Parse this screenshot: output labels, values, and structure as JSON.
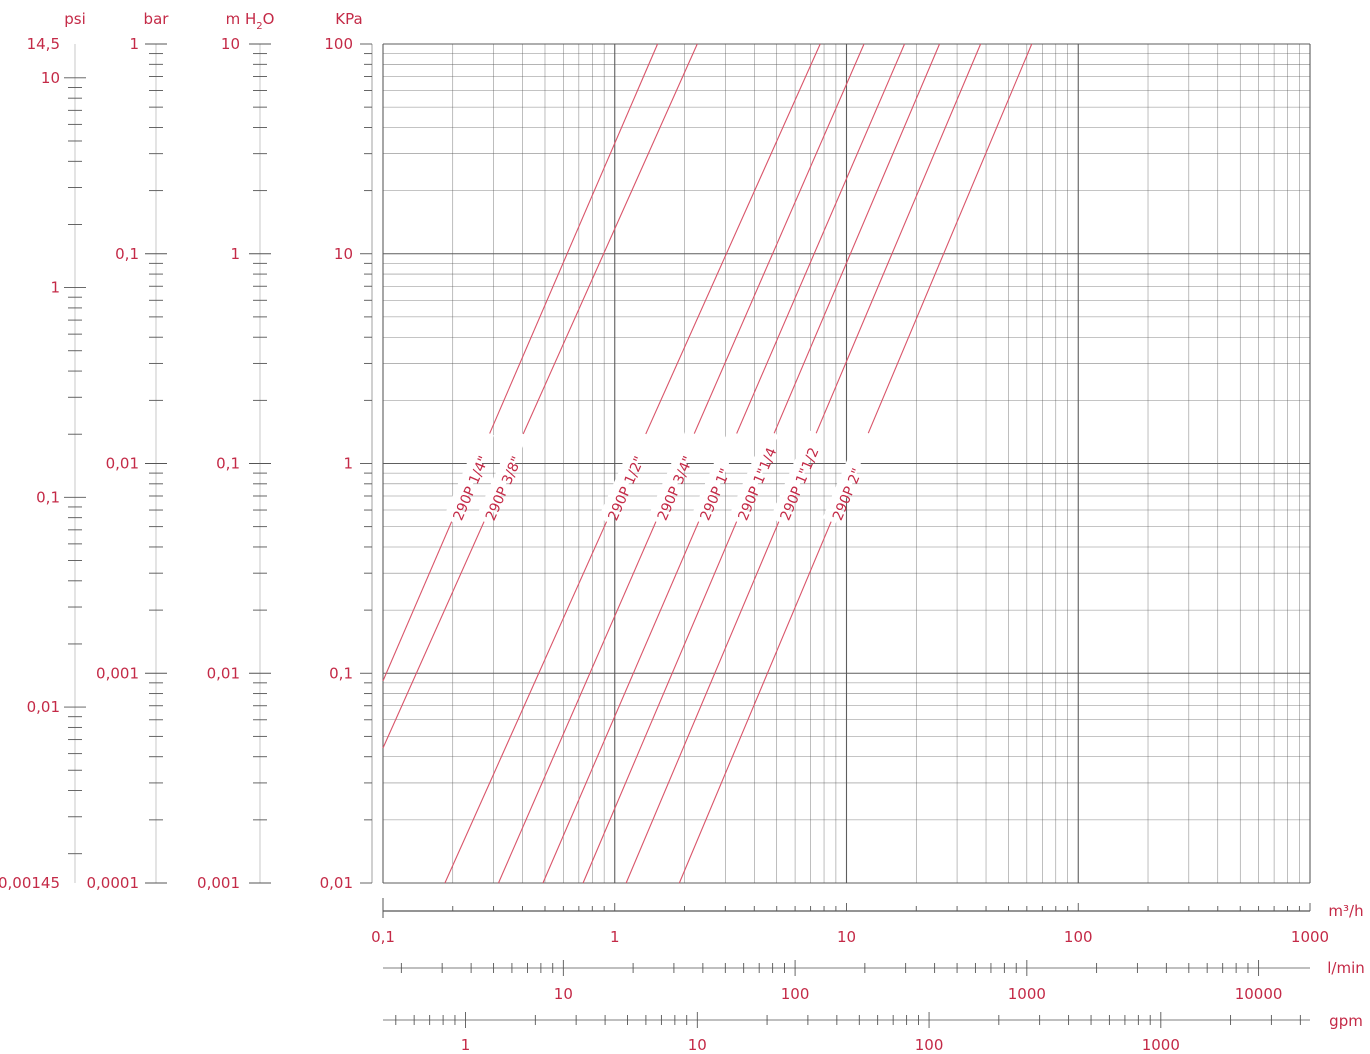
{
  "chart_data": {
    "type": "line",
    "x_log": true,
    "y_log": true,
    "grid": true,
    "colors": {
      "text": "#c42a47",
      "curve": "#d9556a",
      "grid": "#555555"
    },
    "kpa_axis": {
      "title": "KPa",
      "range": [
        0.01,
        100
      ],
      "tick_labels": [
        {
          "v": 100,
          "t": "100"
        },
        {
          "v": 10,
          "t": "10"
        },
        {
          "v": 1,
          "t": "1"
        },
        {
          "v": 0.1,
          "t": "0,1"
        },
        {
          "v": 0.01,
          "t": "0,01"
        }
      ]
    },
    "pressure_scales": [
      {
        "title": "psi",
        "factor": 0.145,
        "labels": [
          {
            "v": 14.5,
            "t": "14,5"
          },
          {
            "v": 10,
            "t": "10"
          },
          {
            "v": 1,
            "t": "1"
          },
          {
            "v": 0.1,
            "t": "0,1"
          },
          {
            "v": 0.01,
            "t": "0,01"
          },
          {
            "v": 0.00145,
            "t": "0,00145"
          }
        ]
      },
      {
        "title": "bar",
        "factor": 0.01,
        "labels": [
          {
            "v": 1,
            "t": "1"
          },
          {
            "v": 0.1,
            "t": "0,1"
          },
          {
            "v": 0.01,
            "t": "0,01"
          },
          {
            "v": 0.001,
            "t": "0,001"
          },
          {
            "v": 0.0001,
            "t": "0,0001"
          }
        ]
      },
      {
        "title": "m H2O",
        "factor": 0.1,
        "labels": [
          {
            "v": 10,
            "t": "10"
          },
          {
            "v": 1,
            "t": "1"
          },
          {
            "v": 0.1,
            "t": "0,1"
          },
          {
            "v": 0.01,
            "t": "0,01"
          },
          {
            "v": 0.001,
            "t": "0,001"
          }
        ]
      }
    ],
    "flow_axes": [
      {
        "unit": "m³/h",
        "factor": 1,
        "range": [
          0.1,
          1000
        ],
        "labels": [
          {
            "v": 0.1,
            "t": "0,1"
          },
          {
            "v": 1,
            "t": "1"
          },
          {
            "v": 10,
            "t": "10"
          },
          {
            "v": 100,
            "t": "100"
          },
          {
            "v": 1000,
            "t": "1000"
          }
        ]
      },
      {
        "unit": "l/min",
        "factor": 16.667,
        "labels": [
          {
            "v": 10,
            "t": "10"
          },
          {
            "v": 100,
            "t": "100"
          },
          {
            "v": 1000,
            "t": "1000"
          },
          {
            "v": 10000,
            "t": "10000"
          }
        ]
      },
      {
        "unit": "gpm",
        "factor": 4.403,
        "labels": [
          {
            "v": 1,
            "t": "1"
          },
          {
            "v": 10,
            "t": "10"
          },
          {
            "v": 100,
            "t": "100"
          },
          {
            "v": 1000,
            "t": "1000"
          }
        ]
      }
    ],
    "series": [
      {
        "name": "290P 1/4\"",
        "points": [
          {
            "x": 0.1,
            "y": 0.092
          },
          {
            "x": 1.53,
            "y": 100
          }
        ]
      },
      {
        "name": "290P 3/8\"",
        "points": [
          {
            "x": 0.1,
            "y": 0.044
          },
          {
            "x": 2.27,
            "y": 100
          }
        ]
      },
      {
        "name": "290P 1/2\"",
        "points": [
          {
            "x": 0.185,
            "y": 0.01
          },
          {
            "x": 7.7,
            "y": 100
          }
        ]
      },
      {
        "name": "290P 3/4\"",
        "points": [
          {
            "x": 0.315,
            "y": 0.01
          },
          {
            "x": 11.9,
            "y": 100
          }
        ]
      },
      {
        "name": "290P 1\"",
        "points": [
          {
            "x": 0.49,
            "y": 0.01
          },
          {
            "x": 17.8,
            "y": 100
          }
        ]
      },
      {
        "name": "290P 1\"1/4",
        "points": [
          {
            "x": 0.73,
            "y": 0.01
          },
          {
            "x": 25.2,
            "y": 100
          }
        ]
      },
      {
        "name": "290P 1\"1/2",
        "points": [
          {
            "x": 1.12,
            "y": 0.01
          },
          {
            "x": 37.9,
            "y": 100
          }
        ]
      },
      {
        "name": "290P 2\"",
        "points": [
          {
            "x": 1.9,
            "y": 0.01
          },
          {
            "x": 63,
            "y": 100
          }
        ]
      }
    ]
  }
}
